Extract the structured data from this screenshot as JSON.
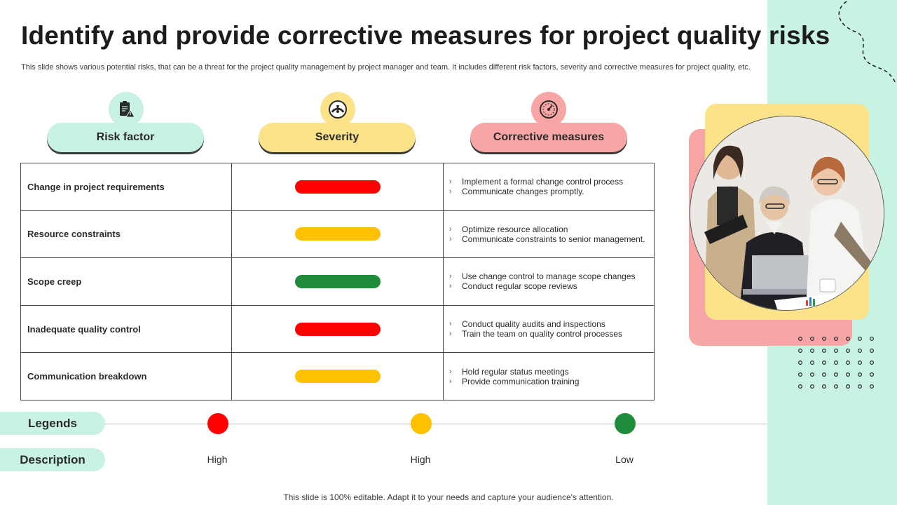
{
  "title": "Identify and provide corrective measures for project quality risks",
  "subtitle": "This slide shows various potential risks, that can be a threat for the project quality management by project manager and team. It includes different risk factors, severity and corrective  measures for project quality, etc.",
  "headers": {
    "risk_factor": "Risk factor",
    "severity": "Severity",
    "corrective": "Corrective measures"
  },
  "rows": [
    {
      "factor": "Change in project requirements",
      "severity": "High",
      "measures": [
        "Implement a formal change control process",
        "Communicate changes promptly."
      ]
    },
    {
      "factor": "Resource constraints",
      "severity": "High",
      "measures": [
        "Optimize resource allocation",
        "Communicate constraints to senior management."
      ]
    },
    {
      "factor": "Scope creep",
      "severity": "Low",
      "measures": [
        "Use change control to manage scope changes",
        "Conduct regular scope reviews"
      ]
    },
    {
      "factor": "Inadequate quality control",
      "severity": "High",
      "measures": [
        "Conduct quality audits and inspections",
        "Train the team on quality control processes"
      ]
    },
    {
      "factor": "Communication breakdown",
      "severity": "High",
      "measures": [
        "Hold regular status meetings",
        "Provide communication training"
      ]
    }
  ],
  "legend": {
    "legends_label": "Legends",
    "description_label": "Description",
    "items": [
      {
        "description": "High",
        "color": "#ff0000"
      },
      {
        "description": "High",
        "color": "#ffc000"
      },
      {
        "description": "Low",
        "color": "#1e8c3a"
      }
    ]
  },
  "footer": "This slide is 100% editable. Adapt it to your needs and capture your audience's attention.",
  "colors": {
    "mint": "#c8f2e1",
    "yellow": "#fce38a",
    "pink": "#f7a5a5",
    "sev_red": "#ff0000",
    "sev_amber": "#ffc000",
    "sev_green": "#1e8c3a"
  },
  "icons": {
    "risk_factor": "clipboard-warning-icon",
    "severity": "gauge-icon",
    "corrective": "speedometer-icon"
  }
}
